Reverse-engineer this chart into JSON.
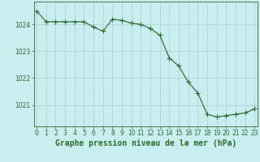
{
  "hours": [
    0,
    1,
    2,
    3,
    4,
    5,
    6,
    7,
    8,
    9,
    10,
    11,
    12,
    13,
    14,
    15,
    16,
    17,
    18,
    19,
    20,
    21,
    22,
    23
  ],
  "pressure": [
    1024.5,
    1024.1,
    1024.1,
    1024.1,
    1024.1,
    1024.1,
    1023.9,
    1023.75,
    1024.2,
    1024.15,
    1024.05,
    1024.0,
    1023.85,
    1023.6,
    1022.75,
    1022.45,
    1021.85,
    1021.45,
    1020.65,
    1020.55,
    1020.6,
    1020.65,
    1020.7,
    1020.85
  ],
  "line_color": "#2d6a2d",
  "marker": "+",
  "marker_size": 4,
  "bg_color": "#c8eef0",
  "grid_color": "#aacfd3",
  "axis_color": "#2d6a2d",
  "xlabel": "Graphe pression niveau de la mer (hPa)",
  "xlabel_fontsize": 7,
  "ytick_labels": [
    "1021",
    "1022",
    "1023",
    "1024"
  ],
  "ytick_values": [
    1021,
    1022,
    1023,
    1024
  ],
  "ylim": [
    1020.2,
    1024.85
  ],
  "xlim": [
    -0.3,
    23.3
  ],
  "xtick_labels": [
    "0",
    "1",
    "2",
    "3",
    "4",
    "5",
    "6",
    "7",
    "8",
    "9",
    "10",
    "11",
    "12",
    "13",
    "14",
    "15",
    "16",
    "17",
    "18",
    "19",
    "20",
    "21",
    "22",
    "23"
  ],
  "tick_fontsize": 5.5
}
